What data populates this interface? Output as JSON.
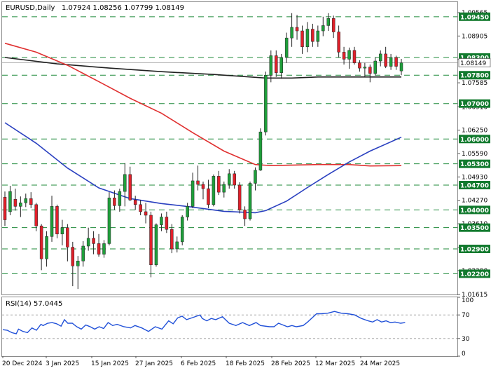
{
  "header": {
    "symbol": "EURUSD,Daily",
    "ohlc": "1.07924 1.08256 1.07799 1.08149"
  },
  "colors": {
    "bull": "#1e9e3a",
    "bear": "#e0202a",
    "sma_long": "#202020",
    "sma_mid": "#e03030",
    "sma_short": "#2a40c0",
    "rsi": "#2050d8",
    "level_line": "#1f8a3a",
    "level_box": "#127a2e"
  },
  "chart_data": [
    {
      "type": "candlestick",
      "title": "EURUSD,Daily",
      "ylim": [
        1.01615,
        1.09565
      ],
      "y_ticks": [
        "1.09565",
        "1.08905",
        "1.08245",
        "1.07585",
        "1.06910",
        "1.06250",
        "1.05590",
        "1.04930",
        "1.04270",
        "1.03610",
        "1.02950",
        "1.02290",
        "1.01615"
      ],
      "levels": [
        "1.09450",
        "1.08300",
        "1.07800",
        "1.07000",
        "1.06000",
        "1.05300",
        "1.04700",
        "1.04000",
        "1.03500",
        "1.02900",
        "1.02200"
      ],
      "current_price": "1.08149",
      "x_labels": [
        "20 Dec 2024",
        "3 Jan 2025",
        "15 Jan 2025",
        "27 Jan 2025",
        "6 Feb 2025",
        "18 Feb 2025",
        "28 Feb 2025",
        "12 Mar 2025",
        "24 Mar 2025"
      ],
      "candles": [
        [
          1.0436,
          1.0452,
          1.0355,
          1.0372
        ],
        [
          1.0395,
          1.0468,
          1.0385,
          1.0452
        ],
        [
          1.043,
          1.046,
          1.0398,
          1.041
        ],
        [
          1.041,
          1.0438,
          1.038,
          1.042
        ],
        [
          1.042,
          1.0446,
          1.0408,
          1.0432
        ],
        [
          1.0432,
          1.045,
          1.0405,
          1.0415
        ],
        [
          1.0415,
          1.042,
          1.034,
          1.0355
        ],
        [
          1.0355,
          1.036,
          1.023,
          1.0262
        ],
        [
          1.0262,
          1.034,
          1.024,
          1.0325
        ],
        [
          1.0325,
          1.044,
          1.031,
          1.041
        ],
        [
          1.041,
          1.0415,
          1.032,
          1.0332
        ],
        [
          1.0332,
          1.0372,
          1.03,
          1.035
        ],
        [
          1.035,
          1.036,
          1.0255,
          1.0295
        ],
        [
          1.0295,
          1.031,
          1.0185,
          1.0242
        ],
        [
          1.0242,
          1.027,
          1.0177,
          1.0256
        ],
        [
          1.0256,
          1.0312,
          1.024,
          1.0298
        ],
        [
          1.0298,
          1.035,
          1.0285,
          1.032
        ],
        [
          1.032,
          1.034,
          1.0275,
          1.0305
        ],
        [
          1.0305,
          1.0332,
          1.0268,
          1.0275
        ],
        [
          1.0275,
          1.0315,
          1.0265,
          1.0305
        ],
        [
          1.0305,
          1.045,
          1.03,
          1.0434
        ],
        [
          1.0434,
          1.0455,
          1.04,
          1.0412
        ],
        [
          1.0412,
          1.046,
          1.0395,
          1.0452
        ],
        [
          1.0452,
          1.0532,
          1.041,
          1.05
        ],
        [
          1.05,
          1.0522,
          1.0425,
          1.0428
        ],
        [
          1.0428,
          1.044,
          1.04,
          1.0415
        ],
        [
          1.0415,
          1.0428,
          1.0385,
          1.0395
        ],
        [
          1.0395,
          1.042,
          1.0362,
          1.0385
        ],
        [
          1.0385,
          1.0395,
          1.021,
          1.0245
        ],
        [
          1.0245,
          1.0362,
          1.024,
          1.0358
        ],
        [
          1.0358,
          1.039,
          1.034,
          1.038
        ],
        [
          1.038,
          1.0395,
          1.0335,
          1.0345
        ],
        [
          1.0345,
          1.036,
          1.0278,
          1.029
        ],
        [
          1.029,
          1.0325,
          1.028,
          1.031
        ],
        [
          1.031,
          1.0385,
          1.03,
          1.038
        ],
        [
          1.038,
          1.042,
          1.037,
          1.041
        ],
        [
          1.041,
          1.0505,
          1.0405,
          1.0482
        ],
        [
          1.0482,
          1.0525,
          1.0455,
          1.0472
        ],
        [
          1.0472,
          1.048,
          1.043,
          1.046
        ],
        [
          1.046,
          1.0485,
          1.0405,
          1.0415
        ],
        [
          1.0415,
          1.05,
          1.041,
          1.0495
        ],
        [
          1.0495,
          1.051,
          1.0442,
          1.045
        ],
        [
          1.045,
          1.048,
          1.0435,
          1.0472
        ],
        [
          1.0472,
          1.0515,
          1.046,
          1.0502
        ],
        [
          1.0502,
          1.051,
          1.046,
          1.047
        ],
        [
          1.047,
          1.0478,
          1.039,
          1.04
        ],
        [
          1.04,
          1.041,
          1.0355,
          1.0375
        ],
        [
          1.0375,
          1.048,
          1.037,
          1.0475
        ],
        [
          1.0475,
          1.052,
          1.0455,
          1.0512
        ],
        [
          1.0512,
          1.063,
          1.051,
          1.062
        ],
        [
          1.062,
          1.079,
          1.061,
          1.078
        ],
        [
          1.078,
          1.085,
          1.076,
          1.0835
        ],
        [
          1.0835,
          1.085,
          1.0775,
          1.0787
        ],
        [
          1.0787,
          1.084,
          1.077,
          1.083
        ],
        [
          1.083,
          1.09,
          1.0815,
          1.0885
        ],
        [
          1.0885,
          1.0955,
          1.086,
          1.0915
        ],
        [
          1.0915,
          1.095,
          1.088,
          1.0905
        ],
        [
          1.0905,
          1.092,
          1.084,
          1.086
        ],
        [
          1.086,
          1.093,
          1.0845,
          1.091
        ],
        [
          1.091,
          1.0925,
          1.086,
          1.0875
        ],
        [
          1.0875,
          1.092,
          1.086,
          1.0905
        ],
        [
          1.0905,
          1.0945,
          1.089,
          1.092
        ],
        [
          1.092,
          1.0955,
          1.0905,
          1.094
        ],
        [
          1.094,
          1.0948,
          1.0885,
          1.0902
        ],
        [
          1.0902,
          1.092,
          1.083,
          1.0845
        ],
        [
          1.0845,
          1.086,
          1.081,
          1.0825
        ],
        [
          1.0825,
          1.0858,
          1.0798,
          1.085
        ],
        [
          1.085,
          1.086,
          1.081,
          1.0815
        ],
        [
          1.0815,
          1.0822,
          1.079,
          1.08
        ],
        [
          1.08,
          1.0815,
          1.0775,
          1.0803
        ],
        [
          1.0803,
          1.081,
          1.076,
          1.0785
        ],
        [
          1.0785,
          1.083,
          1.078,
          1.082
        ],
        [
          1.082,
          1.085,
          1.0805,
          1.084
        ],
        [
          1.084,
          1.086,
          1.08,
          1.0805
        ],
        [
          1.0805,
          1.084,
          1.0795,
          1.083
        ],
        [
          1.083,
          1.0835,
          1.0795,
          1.0805
        ],
        [
          1.0792,
          1.0826,
          1.078,
          1.0815
        ]
      ],
      "sma_long": [
        [
          0,
          1.083
        ],
        [
          10,
          1.0812
        ],
        [
          20,
          1.08
        ],
        [
          30,
          1.079
        ],
        [
          40,
          1.0782
        ],
        [
          50,
          1.0772
        ],
        [
          55,
          1.0772
        ],
        [
          60,
          1.0775
        ],
        [
          76,
          1.0775
        ]
      ],
      "sma_mid": [
        [
          0,
          1.087
        ],
        [
          6,
          1.0845
        ],
        [
          12,
          1.0808
        ],
        [
          18,
          1.0762
        ],
        [
          24,
          1.0715
        ],
        [
          30,
          1.0673
        ],
        [
          36,
          1.0618
        ],
        [
          42,
          1.0566
        ],
        [
          48,
          1.0528
        ],
        [
          51,
          1.0525
        ],
        [
          60,
          1.0528
        ],
        [
          66,
          1.0528
        ],
        [
          70,
          1.0524
        ],
        [
          76,
          1.0525
        ]
      ],
      "sma_short": [
        [
          0,
          1.0646
        ],
        [
          6,
          1.0588
        ],
        [
          12,
          1.0518
        ],
        [
          18,
          1.0462
        ],
        [
          24,
          1.0432
        ],
        [
          30,
          1.0418
        ],
        [
          36,
          1.0408
        ],
        [
          42,
          1.0396
        ],
        [
          48,
          1.0392
        ],
        [
          50,
          1.0398
        ],
        [
          54,
          1.0425
        ],
        [
          58,
          1.0463
        ],
        [
          62,
          1.05
        ],
        [
          66,
          1.0535
        ],
        [
          70,
          1.0566
        ],
        [
          76,
          1.0605
        ]
      ]
    },
    {
      "type": "line",
      "title": "RSI(14) 57.0445",
      "ylim": [
        0,
        100
      ],
      "y_ticks": [
        "100",
        "70",
        "30",
        "0"
      ],
      "guide_levels": [
        70,
        30
      ],
      "values": [
        [
          0,
          45
        ],
        [
          4,
          44
        ],
        [
          8,
          40
        ],
        [
          12,
          38
        ],
        [
          14,
          46
        ],
        [
          18,
          42
        ],
        [
          22,
          40
        ],
        [
          26,
          48
        ],
        [
          30,
          44
        ],
        [
          34,
          54
        ],
        [
          36,
          52
        ],
        [
          40,
          56
        ],
        [
          44,
          57
        ],
        [
          48,
          55
        ],
        [
          52,
          51
        ],
        [
          55,
          62
        ],
        [
          58,
          56
        ],
        [
          62,
          56
        ],
        [
          66,
          50
        ],
        [
          70,
          46
        ],
        [
          74,
          53
        ],
        [
          78,
          50
        ],
        [
          82,
          46
        ],
        [
          86,
          50
        ],
        [
          90,
          47
        ],
        [
          94,
          57
        ],
        [
          98,
          52
        ],
        [
          102,
          54
        ],
        [
          108,
          50
        ],
        [
          114,
          48
        ],
        [
          118,
          52
        ],
        [
          124,
          48
        ],
        [
          130,
          42
        ],
        [
          136,
          50
        ],
        [
          142,
          46
        ],
        [
          148,
          60
        ],
        [
          152,
          55
        ],
        [
          156,
          65
        ],
        [
          160,
          68
        ],
        [
          164,
          62
        ],
        [
          170,
          66
        ],
        [
          176,
          70
        ],
        [
          178,
          64
        ],
        [
          182,
          60
        ],
        [
          186,
          64
        ],
        [
          190,
          62
        ],
        [
          196,
          67
        ],
        [
          202,
          56
        ],
        [
          208,
          52
        ],
        [
          214,
          57
        ],
        [
          220,
          52
        ],
        [
          226,
          57
        ],
        [
          230,
          52
        ],
        [
          238,
          50
        ],
        [
          242,
          50
        ],
        [
          246,
          56
        ],
        [
          254,
          50
        ],
        [
          258,
          52
        ],
        [
          262,
          50
        ],
        [
          268,
          52
        ],
        [
          272,
          58
        ],
        [
          276,
          65
        ],
        [
          280,
          72
        ],
        [
          284,
          72
        ],
        [
          290,
          73
        ],
        [
          296,
          76
        ],
        [
          302,
          73
        ],
        [
          308,
          72
        ],
        [
          314,
          70
        ],
        [
          320,
          64
        ],
        [
          326,
          60
        ],
        [
          330,
          58
        ],
        [
          334,
          62
        ],
        [
          338,
          58
        ],
        [
          342,
          60
        ],
        [
          346,
          57
        ],
        [
          350,
          58
        ],
        [
          355,
          56
        ],
        [
          359,
          57
        ]
      ]
    }
  ]
}
